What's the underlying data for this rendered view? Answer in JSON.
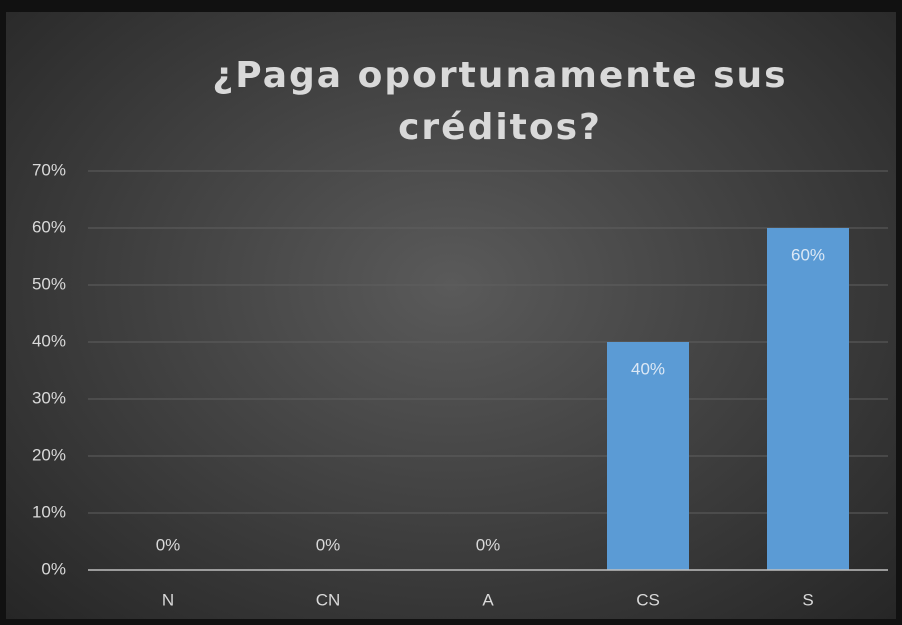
{
  "chart_data": {
    "type": "bar",
    "title": "¿Paga oportunamente sus créditos?",
    "categories": [
      "N",
      "CN",
      "A",
      "CS",
      "S"
    ],
    "values": [
      0,
      0,
      0,
      40,
      60
    ],
    "value_labels": [
      "0%",
      "0%",
      "0%",
      "40%",
      "60%"
    ],
    "color": "#5b9bd5",
    "ylim": [
      0,
      70
    ],
    "yticks": [
      {
        "value": 0,
        "label": "0%"
      },
      {
        "value": 10,
        "label": "10%"
      },
      {
        "value": 20,
        "label": "20%"
      },
      {
        "value": 30,
        "label": "30%"
      },
      {
        "value": 40,
        "label": "40%"
      },
      {
        "value": 50,
        "label": "50%"
      },
      {
        "value": 60,
        "label": "60%"
      },
      {
        "value": 70,
        "label": "70%"
      }
    ],
    "grid": true
  }
}
